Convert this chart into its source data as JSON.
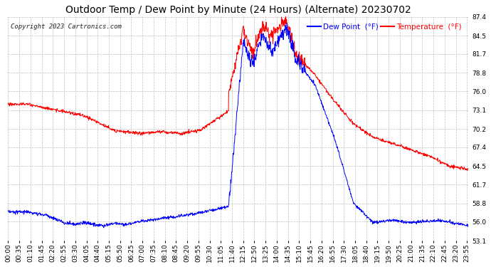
{
  "title": "Outdoor Temp / Dew Point by Minute (24 Hours) (Alternate) 20230702",
  "copyright": "Copyright 2023 Cartronics.com",
  "legend_dew": "Dew Point  (°F)",
  "legend_temp": "Temperature  (°F)",
  "color_dew": "#0000ff",
  "color_temp": "#ff0000",
  "ylim": [
    53.1,
    87.4
  ],
  "yticks": [
    53.1,
    56.0,
    58.8,
    61.7,
    64.5,
    67.4,
    70.2,
    73.1,
    76.0,
    78.8,
    81.7,
    84.5,
    87.4
  ],
  "background_color": "#ffffff",
  "grid_color": "#c0c0c0",
  "title_fontsize": 10,
  "tick_fontsize": 6.5,
  "num_minutes": 1440,
  "x_tick_interval": 35,
  "figwidth": 6.9,
  "figheight": 3.75,
  "dpi": 100
}
